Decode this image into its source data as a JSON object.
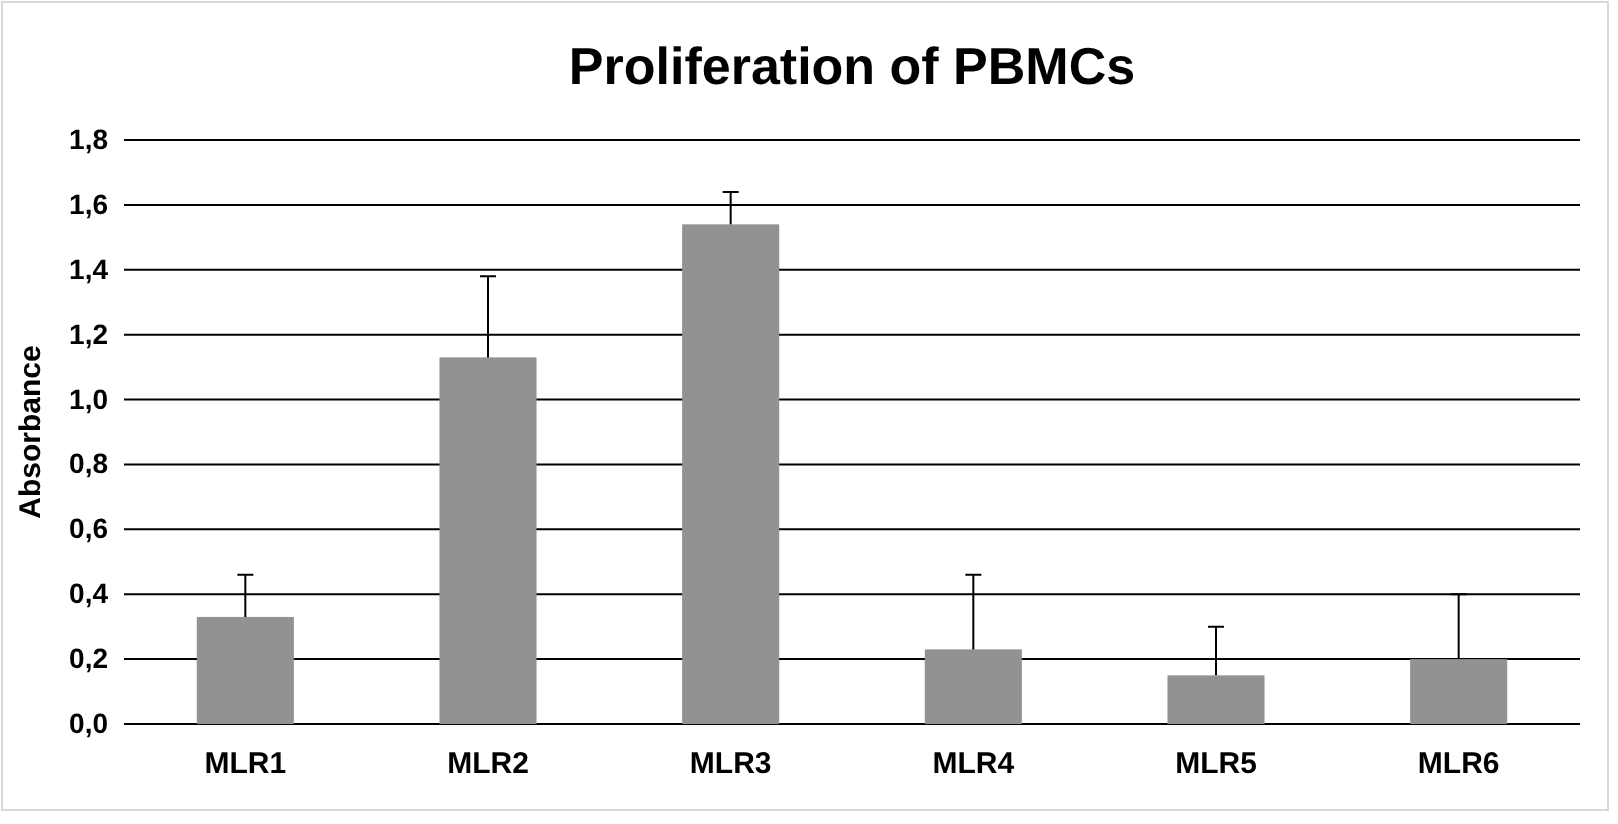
{
  "chart_data": {
    "type": "bar",
    "title": "Proliferation of PBMCs",
    "ylabel": "Absorbance",
    "categories": [
      "MLR1",
      "MLR2",
      "MLR3",
      "MLR4",
      "MLR5",
      "MLR6"
    ],
    "values": [
      0.33,
      1.13,
      1.54,
      0.23,
      0.15,
      0.2
    ],
    "errors": [
      [
        0.33,
        0.46
      ],
      [
        1.13,
        1.38
      ],
      [
        1.54,
        1.64
      ],
      [
        0.23,
        0.46
      ],
      [
        0.15,
        0.3
      ],
      [
        0.2,
        0.4
      ]
    ],
    "color": "#929292",
    "ylim": [
      0,
      1.8
    ],
    "yticks": [
      {
        "value": 0,
        "label": "0,0"
      },
      {
        "value": 0.2,
        "label": "0,2"
      },
      {
        "value": 0.4,
        "label": "0,4"
      },
      {
        "value": 0.6,
        "label": "0,6"
      },
      {
        "value": 0.8,
        "label": "0,8"
      },
      {
        "value": 1,
        "label": "1,0"
      },
      {
        "value": 1.2,
        "label": "1,2"
      },
      {
        "value": 1.4,
        "label": "1,4"
      },
      {
        "value": 1.6,
        "label": "1,6"
      },
      {
        "value": 1.8,
        "label": "1,8"
      }
    ],
    "grid": "y"
  }
}
